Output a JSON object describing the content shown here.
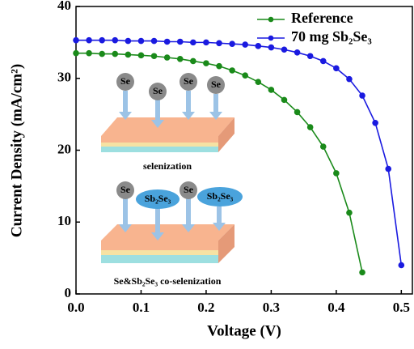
{
  "chart_data": {
    "type": "line",
    "xlabel": "Voltage (V)",
    "ylabel": "Current Density (mA/cm²)",
    "xlim": [
      0,
      0.517
    ],
    "ylim": [
      0,
      40
    ],
    "xticks": [
      {
        "value": 0,
        "label": "0.0"
      },
      0.1,
      0.2,
      0.3,
      0.4,
      0.5
    ],
    "yticks": [
      0,
      10,
      20,
      30,
      40
    ],
    "legend": "upper right",
    "series": [
      {
        "name": "Reference",
        "color": "#1a8a1a",
        "x": [
          0,
          0.02,
          0.04,
          0.06,
          0.08,
          0.1,
          0.12,
          0.14,
          0.16,
          0.18,
          0.2,
          0.22,
          0.24,
          0.26,
          0.28,
          0.3,
          0.32,
          0.34,
          0.36,
          0.38,
          0.4,
          0.42,
          0.44
        ],
        "values": [
          33.5,
          33.5,
          33.4,
          33.4,
          33.3,
          33.2,
          33.1,
          32.9,
          32.7,
          32.4,
          32.1,
          31.7,
          31.1,
          30.4,
          29.5,
          28.4,
          27.0,
          25.3,
          23.2,
          20.5,
          16.8,
          11.3,
          3.0
        ]
      },
      {
        "name": "70 mg Sb₂Se₃",
        "color": "#1a1ae0",
        "x": [
          0,
          0.02,
          0.04,
          0.06,
          0.08,
          0.1,
          0.12,
          0.14,
          0.16,
          0.18,
          0.2,
          0.22,
          0.24,
          0.26,
          0.28,
          0.3,
          0.32,
          0.34,
          0.36,
          0.38,
          0.4,
          0.42,
          0.44,
          0.46,
          0.48,
          0.5
        ],
        "values": [
          35.3,
          35.3,
          35.3,
          35.3,
          35.2,
          35.2,
          35.2,
          35.1,
          35.1,
          35.0,
          35.0,
          34.9,
          34.8,
          34.7,
          34.5,
          34.3,
          34.0,
          33.6,
          33.1,
          32.4,
          31.4,
          29.9,
          27.6,
          23.8,
          17.4,
          4.0
        ]
      }
    ],
    "annotations": {
      "se": "Se",
      "sb2se3": "Sb₂Se₃",
      "top_caption": "selenization",
      "bottom_caption": "Se&Sb₂Se₃ co-selenization"
    }
  }
}
